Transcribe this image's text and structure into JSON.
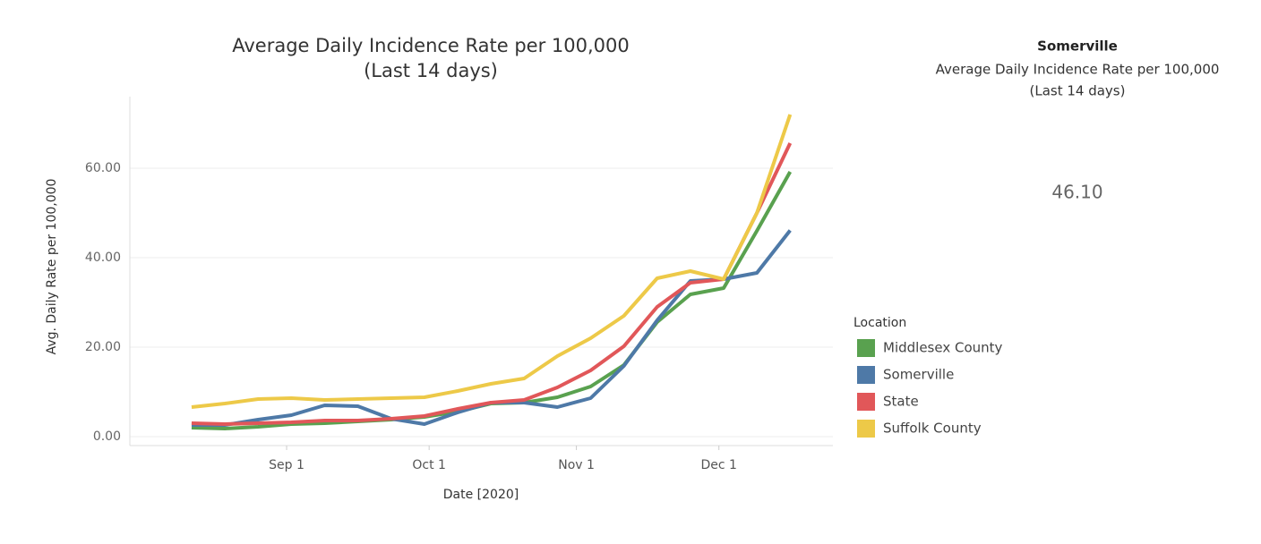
{
  "chart_data": {
    "type": "line",
    "title": "Average Daily Incidence Rate per 100,000",
    "subtitle": "(Last 14 days)",
    "x_label": "Date [2020]",
    "y_label": "Avg. Daily Rate per 100,000",
    "x": [
      "2020-08-12",
      "2020-08-19",
      "2020-08-26",
      "2020-09-02",
      "2020-09-09",
      "2020-09-16",
      "2020-09-23",
      "2020-09-30",
      "2020-10-07",
      "2020-10-14",
      "2020-10-21",
      "2020-10-28",
      "2020-11-04",
      "2020-11-11",
      "2020-11-18",
      "2020-11-25",
      "2020-12-02",
      "2020-12-09",
      "2020-12-16"
    ],
    "xlim": [
      "2020-07-30",
      "2020-12-25"
    ],
    "xticks": [
      {
        "value": "2020-09-01",
        "label": "Sep 1"
      },
      {
        "value": "2020-10-01",
        "label": "Oct 1"
      },
      {
        "value": "2020-11-01",
        "label": "Nov 1"
      },
      {
        "value": "2020-12-01",
        "label": "Dec 1"
      }
    ],
    "ylim": [
      -2,
      76
    ],
    "yticks": [
      {
        "value": 0,
        "label": "0.00"
      },
      {
        "value": 20,
        "label": "20.00"
      },
      {
        "value": 40,
        "label": "40.00"
      },
      {
        "value": 60,
        "label": "60.00"
      }
    ],
    "grid": true,
    "legend_title": "Location",
    "series": [
      {
        "name": "Middlesex County",
        "color": "#59a14f",
        "values": [
          2,
          1.8,
          2.2,
          2.8,
          3,
          3.4,
          3.8,
          4.4,
          5.6,
          7.4,
          7.6,
          8.8,
          11.2,
          16,
          25.6,
          31.8,
          33.2,
          46,
          59.2
        ]
      },
      {
        "name": "Somerville",
        "color": "#4e79a7",
        "values": [
          2.6,
          2.6,
          3.8,
          4.8,
          7,
          6.8,
          4,
          2.8,
          5.4,
          7.6,
          7.6,
          6.6,
          8.6,
          15.8,
          26,
          34.8,
          35.2,
          36.6,
          46.1
        ]
      },
      {
        "name": "State",
        "color": "#e15759",
        "values": [
          3,
          2.8,
          3,
          3.2,
          3.6,
          3.6,
          4,
          4.6,
          6.2,
          7.6,
          8.2,
          11,
          14.8,
          20.2,
          29,
          34.4,
          35.2,
          50,
          65.6
        ]
      },
      {
        "name": "Suffolk County",
        "color": "#edc948",
        "values": [
          6.6,
          7.4,
          8.4,
          8.6,
          8.2,
          8.4,
          8.6,
          8.8,
          10.2,
          11.8,
          13,
          18,
          22,
          27,
          35.4,
          37,
          35.2,
          50,
          72
        ]
      }
    ]
  },
  "kpi": {
    "title": "Somerville",
    "subtitle_1": "Average Daily Incidence Rate per 100,000",
    "subtitle_2": "(Last 14 days)",
    "value": 46.1,
    "value_label": "46.10"
  }
}
